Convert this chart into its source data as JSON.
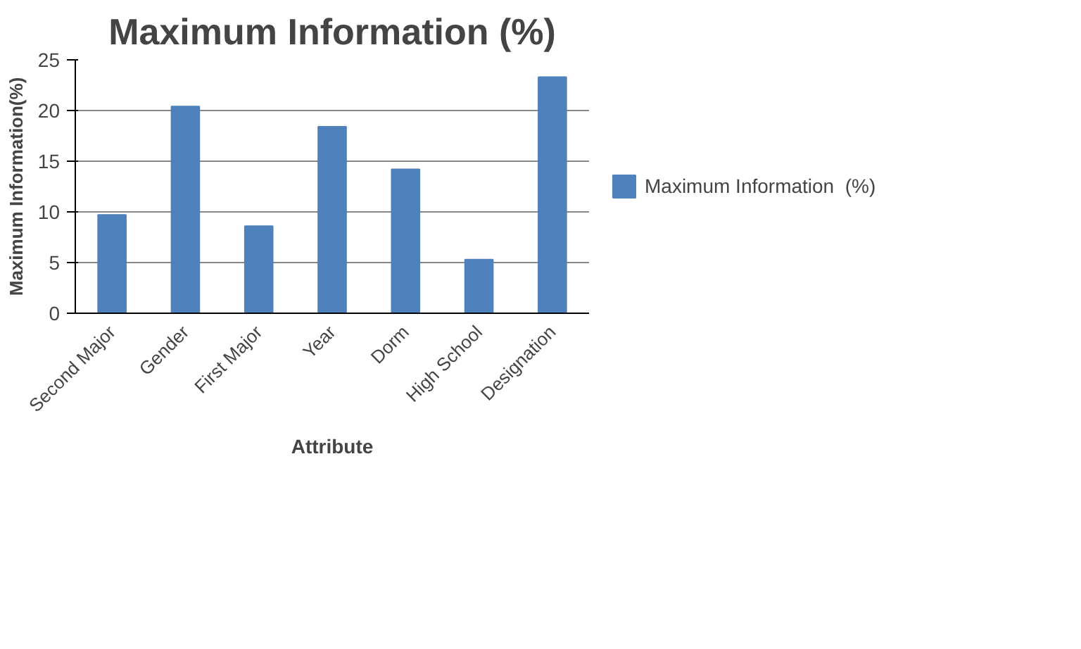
{
  "chart_data": {
    "type": "bar",
    "title": "Maximum Information (%)",
    "xlabel": "Attribute",
    "ylabel": "Maximum Information(%)",
    "categories": [
      "Second Major",
      "Gender",
      "First Major",
      "Year",
      "Dorm",
      "High School",
      "Designation"
    ],
    "series": [
      {
        "name": "Maximum Information  (%)",
        "color": "#4f81bd",
        "values": [
          9.7,
          20.4,
          8.6,
          18.4,
          14.2,
          5.3,
          23.3
        ]
      }
    ],
    "ylim": [
      0,
      25
    ],
    "yticks": [
      0,
      5,
      10,
      15,
      20,
      25
    ],
    "grid": "y",
    "legend": "right"
  }
}
